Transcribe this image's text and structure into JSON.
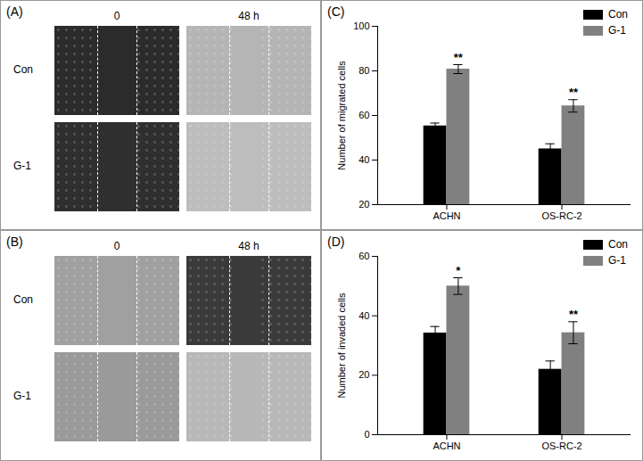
{
  "image_panels": [
    {
      "label": "(A)",
      "columns": [
        "0",
        "48 h"
      ],
      "rows": [
        "Con",
        "G-1"
      ]
    },
    {
      "label": "(B)",
      "columns": [
        "0",
        "48 h"
      ],
      "rows": [
        "Con",
        "G-1"
      ]
    }
  ],
  "chart_data": [
    {
      "type": "bar",
      "title": "(C)",
      "categories": [
        "ACHN",
        "OS-RC-2"
      ],
      "ylabel": "Number of migrated cells",
      "ylim": [
        20,
        100
      ],
      "yticks": [
        20,
        40,
        60,
        80,
        100
      ],
      "legend": "top-right",
      "series": [
        {
          "name": "Con",
          "color": "#000000",
          "values": [
            55.3,
            45
          ],
          "errors": [
            1.3,
            2.3
          ]
        },
        {
          "name": "G-1",
          "color": "#808080",
          "values": [
            80.8,
            64.3
          ],
          "errors": [
            2,
            2.8
          ]
        }
      ],
      "annotations": [
        {
          "category": "ACHN",
          "series": "G-1",
          "text": "**"
        },
        {
          "category": "OS-RC-2",
          "series": "G-1",
          "text": "**"
        }
      ]
    },
    {
      "type": "bar",
      "title": "(D)",
      "categories": [
        "ACHN",
        "OS-RC-2"
      ],
      "ylabel": "Number of invaded cells",
      "ylim": [
        0,
        60
      ],
      "yticks": [
        0,
        20,
        40,
        60
      ],
      "legend": "top-right",
      "series": [
        {
          "name": "Con",
          "color": "#000000",
          "values": [
            34.2,
            22
          ],
          "errors": [
            2.2,
            2.8
          ]
        },
        {
          "name": "G-1",
          "color": "#808080",
          "values": [
            50,
            34.3
          ],
          "errors": [
            2.8,
            3.7
          ]
        }
      ],
      "annotations": [
        {
          "category": "ACHN",
          "series": "G-1",
          "text": "*"
        },
        {
          "category": "OS-RC-2",
          "series": "G-1",
          "text": "**"
        }
      ]
    }
  ]
}
